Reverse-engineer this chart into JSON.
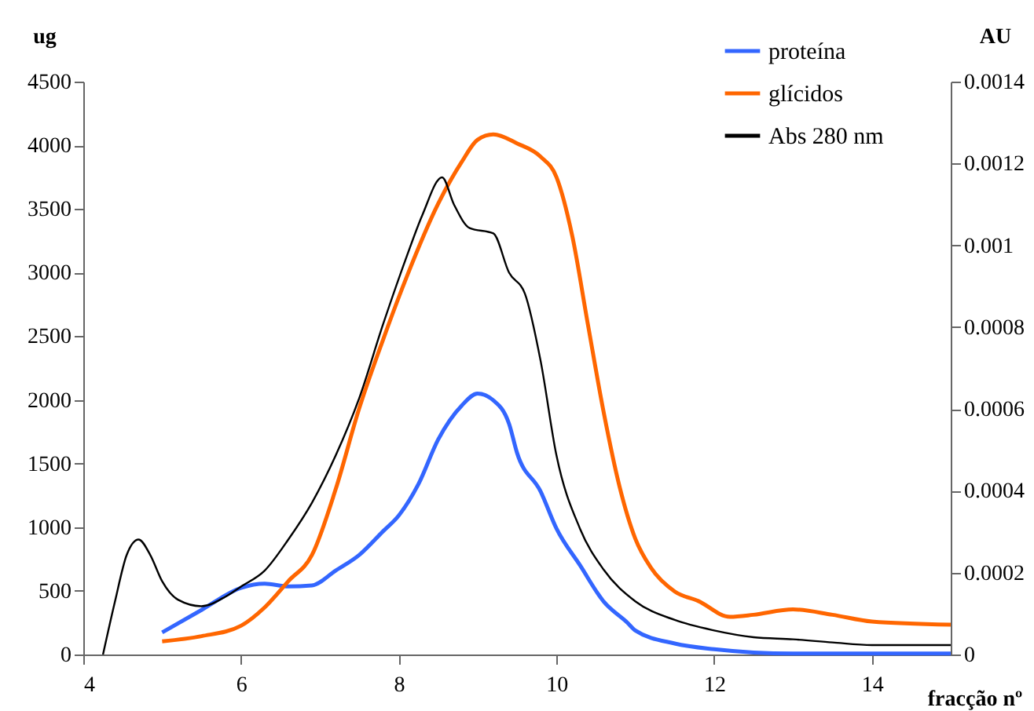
{
  "chart_data": {
    "type": "line",
    "xlabel": "fracção nº",
    "ylabel": "ug",
    "y2label": "AU",
    "xlim": [
      4,
      15
    ],
    "xticks": [
      4,
      6,
      8,
      10,
      12,
      14
    ],
    "ylim": [
      0,
      4500
    ],
    "yticks": [
      0,
      500,
      1000,
      1500,
      2000,
      2500,
      3000,
      3500,
      4000,
      4500
    ],
    "y2lim": [
      0,
      0.0014
    ],
    "y2ticks": [
      0,
      0.0002,
      0.0004,
      0.0006,
      0.0008,
      0.001,
      0.0012,
      0.0014
    ],
    "grid": false,
    "legend": "top right",
    "marker": "none",
    "line_style": "solid",
    "series": [
      {
        "name": "proteína",
        "color": "#3366ff",
        "x": [
          5.0,
          5.5,
          6.0,
          6.3,
          6.6,
          6.9,
          7.2,
          7.5,
          7.8,
          8.0,
          8.25,
          8.5,
          8.8,
          9.0,
          9.2,
          9.4,
          9.5,
          9.8,
          10.0,
          10.3,
          10.6,
          10.9,
          11.0,
          11.5,
          12.0,
          12.5,
          13.0,
          14.0,
          15.0
        ],
        "values": [
          173,
          350,
          523,
          556,
          535,
          543,
          659,
          782,
          967,
          1091,
          1338,
          1688,
          1956,
          2050,
          1997,
          1811,
          1585,
          1280,
          990,
          700,
          415,
          250,
          189,
          86,
          41,
          16,
          8,
          8,
          8
        ]
      },
      {
        "name": "glícidos",
        "color": "#ff6600",
        "x": [
          5.0,
          5.5,
          6.0,
          6.3,
          6.6,
          6.9,
          7.2,
          7.5,
          7.8,
          8.1,
          8.5,
          8.8,
          9.0,
          9.2,
          9.5,
          9.8,
          10.0,
          10.2,
          10.4,
          10.6,
          10.8,
          11.0,
          11.2,
          11.5,
          11.8,
          12.2,
          12.5,
          13.0,
          13.5,
          14.0,
          15.0
        ],
        "values": [
          103,
          144,
          226,
          370,
          576,
          782,
          1297,
          1935,
          2470,
          2964,
          3540,
          3870,
          4043,
          4085,
          4015,
          3910,
          3750,
          3290,
          2590,
          1900,
          1320,
          910,
          680,
          495,
          420,
          296,
          312,
          354,
          312,
          259,
          234
        ]
      },
      {
        "name": "Abs 280 nm",
        "color": "#000000",
        "axis": "y2",
        "x": [
          4.25,
          4.4,
          4.55,
          4.7,
          4.85,
          5.0,
          5.2,
          5.5,
          5.8,
          6.0,
          6.3,
          6.6,
          6.9,
          7.2,
          7.5,
          7.8,
          8.1,
          8.3,
          8.55,
          8.7,
          8.9,
          9.2,
          9.4,
          9.6,
          9.8,
          10.0,
          10.3,
          10.6,
          11.0,
          11.5,
          12.0,
          12.5,
          13.0,
          13.5,
          14.0,
          15.0
        ],
        "values": [
          0,
          0.000128,
          0.000243,
          0.000281,
          0.000243,
          0.000179,
          0.000134,
          0.000118,
          0.000141,
          0.000166,
          0.000205,
          0.000281,
          0.000371,
          0.000486,
          0.000627,
          0.000806,
          0.000972,
          0.001074,
          0.001166,
          0.0011,
          0.001042,
          0.001029,
          0.000933,
          0.000882,
          0.000717,
          0.000487,
          0.000307,
          0.000207,
          0.00013,
          8.44e-05,
          5.87e-05,
          4.22e-05,
          3.72e-05,
          2.95e-05,
          2.3e-05,
          2.3e-05
        ]
      }
    ]
  }
}
